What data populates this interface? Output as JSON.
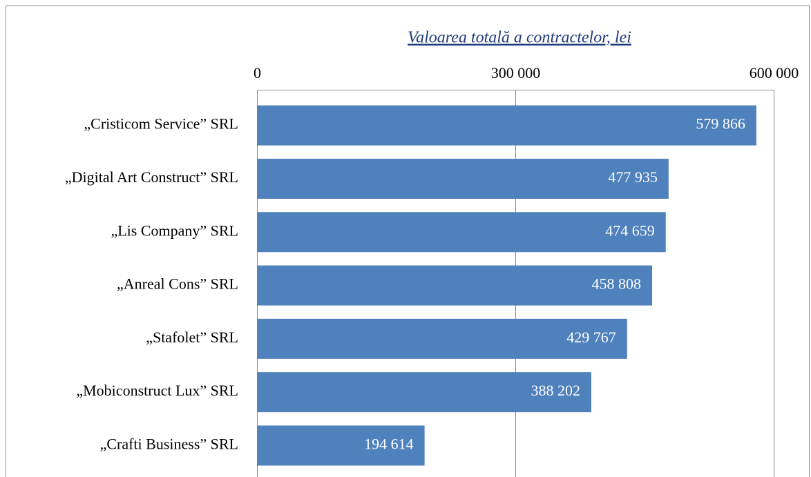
{
  "chart_data": {
    "type": "bar",
    "orientation": "horizontal",
    "title": "Valoarea totală a contractelor, lei",
    "categories": [
      "„Cristicom Service” SRL",
      "„Digital Art Construct” SRL",
      "„Lis Company” SRL",
      "„Anreal Cons” SRL",
      "„Stafolet” SRL",
      "„Mobiconstruct Lux” SRL",
      "„Crafti Business” SRL"
    ],
    "values": [
      579866,
      477935,
      474659,
      458808,
      429767,
      388202,
      194614
    ],
    "value_labels": [
      "579 866",
      "477 935",
      "474 659",
      "458 808",
      "429 767",
      "388 202",
      "194 614"
    ],
    "color": "#4f81bd",
    "xlim": [
      0,
      600000
    ],
    "xticks": [
      0,
      {
        "value": 300000,
        "label": "300 000"
      },
      {
        "value": 600000,
        "label": "600 000"
      }
    ],
    "grid": true
  }
}
